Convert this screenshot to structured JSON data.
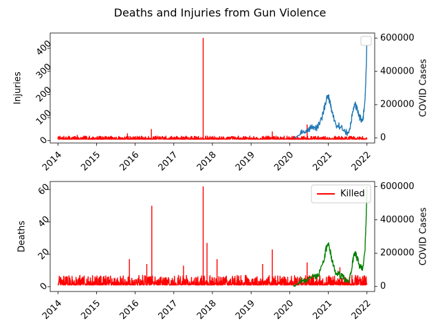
{
  "figure": {
    "title": "Deaths and Injuries from Gun Violence"
  },
  "chart_data": [
    {
      "type": "line",
      "panel": "top",
      "ylabel": "Injuries",
      "y2label": "COVID Cases",
      "xlim": [
        2013.8,
        2022.2
      ],
      "ylim": [
        -10,
        466
      ],
      "y2lim": [
        -30000,
        630000
      ],
      "xticks": [
        "2014",
        "2015",
        "2016",
        "2017",
        "2018",
        "2019",
        "2020",
        "2021",
        "2022"
      ],
      "yticks": [
        "0",
        "100",
        "200",
        "300",
        "400"
      ],
      "y2ticks": [
        "0",
        "200000",
        "400000",
        "600000"
      ],
      "legend": {
        "placement": "top-right",
        "entries": []
      },
      "series": [
        {
          "axis": "left",
          "color": "#ff0000",
          "baseline": 6,
          "noise_amplitude": 14,
          "spikes": [
            {
              "x": 2014.5,
              "y": 25
            },
            {
              "x": 2015.8,
              "y": 32
            },
            {
              "x": 2016.42,
              "y": 50
            },
            {
              "x": 2017.76,
              "y": 445
            },
            {
              "x": 2019.55,
              "y": 40
            },
            {
              "x": 2020.45,
              "y": 70
            }
          ]
        },
        {
          "axis": "right",
          "color": "#1f77b4",
          "points": [
            [
              2020.1,
              0
            ],
            [
              2020.25,
              20000
            ],
            [
              2020.3,
              40000
            ],
            [
              2020.4,
              30000
            ],
            [
              2020.5,
              55000
            ],
            [
              2020.6,
              70000
            ],
            [
              2020.7,
              60000
            ],
            [
              2020.8,
              95000
            ],
            [
              2020.9,
              180000
            ],
            [
              2020.95,
              230000
            ],
            [
              2021.0,
              250000
            ],
            [
              2021.05,
              210000
            ],
            [
              2021.1,
              150000
            ],
            [
              2021.2,
              80000
            ],
            [
              2021.3,
              70000
            ],
            [
              2021.4,
              50000
            ],
            [
              2021.5,
              25000
            ],
            [
              2021.55,
              45000
            ],
            [
              2021.6,
              110000
            ],
            [
              2021.65,
              170000
            ],
            [
              2021.7,
              200000
            ],
            [
              2021.75,
              170000
            ],
            [
              2021.8,
              130000
            ],
            [
              2021.85,
              110000
            ],
            [
              2021.9,
              115000
            ],
            [
              2021.95,
              230000
            ],
            [
              2021.98,
              400000
            ],
            [
              2022.0,
              600000
            ]
          ]
        }
      ]
    },
    {
      "type": "line",
      "panel": "bottom",
      "ylabel": "Deaths",
      "y2label": "COVID Cases",
      "xlim": [
        2013.8,
        2022.2
      ],
      "ylim": [
        -3,
        65
      ],
      "y2lim": [
        -30000,
        630000
      ],
      "xticks": [
        "2014",
        "2015",
        "2016",
        "2017",
        "2018",
        "2019",
        "2020",
        "2021",
        "2022"
      ],
      "yticks": [
        "0",
        "20",
        "40",
        "60"
      ],
      "y2ticks": [
        "0",
        "200000",
        "400000",
        "600000"
      ],
      "legend": {
        "placement": "top-right",
        "entries": [
          {
            "label": "Killed",
            "color": "#ff0000"
          }
        ]
      },
      "series": [
        {
          "axis": "left",
          "name": "Killed",
          "color": "#ff0000",
          "baseline": 1,
          "noise_amplitude": 6,
          "spikes": [
            {
              "x": 2015.85,
              "y": 17
            },
            {
              "x": 2016.3,
              "y": 14
            },
            {
              "x": 2016.43,
              "y": 50
            },
            {
              "x": 2017.25,
              "y": 13
            },
            {
              "x": 2017.76,
              "y": 62
            },
            {
              "x": 2017.86,
              "y": 27
            },
            {
              "x": 2018.12,
              "y": 17
            },
            {
              "x": 2019.55,
              "y": 23
            },
            {
              "x": 2019.3,
              "y": 14
            },
            {
              "x": 2020.45,
              "y": 15
            },
            {
              "x": 2021.3,
              "y": 12
            }
          ]
        },
        {
          "axis": "right",
          "color": "#008000",
          "points": [
            [
              2020.1,
              0
            ],
            [
              2020.25,
              20000
            ],
            [
              2020.3,
              40000
            ],
            [
              2020.4,
              30000
            ],
            [
              2020.5,
              55000
            ],
            [
              2020.6,
              70000
            ],
            [
              2020.7,
              60000
            ],
            [
              2020.8,
              95000
            ],
            [
              2020.9,
              180000
            ],
            [
              2020.95,
              230000
            ],
            [
              2021.0,
              250000
            ],
            [
              2021.05,
              210000
            ],
            [
              2021.1,
              150000
            ],
            [
              2021.2,
              80000
            ],
            [
              2021.3,
              70000
            ],
            [
              2021.4,
              50000
            ],
            [
              2021.5,
              25000
            ],
            [
              2021.55,
              45000
            ],
            [
              2021.6,
              110000
            ],
            [
              2021.65,
              170000
            ],
            [
              2021.7,
              200000
            ],
            [
              2021.75,
              170000
            ],
            [
              2021.8,
              130000
            ],
            [
              2021.85,
              110000
            ],
            [
              2021.9,
              115000
            ],
            [
              2021.95,
              230000
            ],
            [
              2021.98,
              400000
            ],
            [
              2022.0,
              600000
            ]
          ]
        }
      ]
    }
  ]
}
